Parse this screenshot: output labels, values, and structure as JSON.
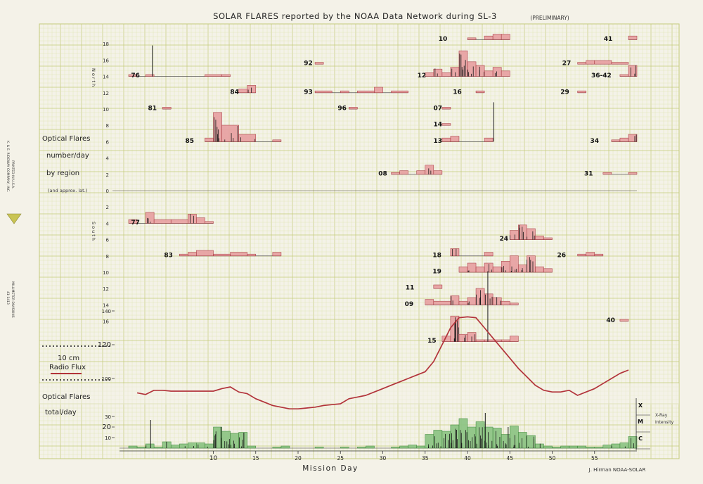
{
  "chart_data": {
    "type": "bar",
    "title": "SOLAR FLARES reported by the NOAA Data Network during SL-3",
    "status": "(PRELIMINARY)",
    "xlabel": "Mission Day",
    "x_ticks": [
      10,
      15,
      20,
      25,
      30,
      35,
      40,
      45,
      50,
      55
    ],
    "x_range": [
      0,
      60
    ],
    "credit": "J. Hirman    NOAA-SOLAR",
    "publisher": {
      "company": "K. & E. RIDGWAY COMPANY, INC.",
      "printed": "PRINTED IN U.S.A.",
      "product": "41-1413",
      "paper": "MILLIMETER DIVISIONS"
    },
    "optical_panel": {
      "label_lines": [
        "Optical Flares",
        "number/day",
        "by region",
        "(and approx. lat.)"
      ],
      "north_label": "North",
      "south_label": "South",
      "lat_ticks_north": [
        "18",
        "16",
        "14",
        "12",
        "10",
        "8",
        "6",
        "4",
        "2"
      ],
      "zero_tick": "0",
      "lat_ticks_south": [
        "2",
        "4",
        "6",
        "8",
        "10",
        "12",
        "14",
        "16"
      ],
      "regions": [
        {
          "id": "76",
          "lat": 14,
          "label_day": 0.8,
          "bars": [
            [
              0,
              1,
              1
            ],
            [
              2,
              3,
              1
            ],
            [
              9,
              11,
              1
            ],
            [
              11,
              12,
              1
            ]
          ]
        },
        {
          "id": "84",
          "lat": 12,
          "label_day": 12.5,
          "bars": [
            [
              13,
              14,
              2
            ],
            [
              14,
              15,
              4
            ]
          ]
        },
        {
          "id": "81",
          "lat": 10,
          "label_day": 2.8,
          "bars": [
            [
              4,
              5,
              1
            ]
          ]
        },
        {
          "id": "85",
          "lat": 6,
          "label_day": 7.2,
          "bars": [
            [
              9,
              10,
              2
            ],
            [
              10,
              11,
              16
            ],
            [
              11,
              13,
              9
            ],
            [
              13,
              15,
              4
            ],
            [
              17,
              18,
              1
            ]
          ]
        },
        {
          "id": "92",
          "lat": 15.5,
          "label_day": 21.2,
          "bars": [
            [
              22,
              23,
              1
            ]
          ]
        },
        {
          "id": "93",
          "lat": 12,
          "label_day": 21.2,
          "bars": [
            [
              22,
              24,
              1
            ],
            [
              25,
              26,
              1
            ],
            [
              27,
              29,
              1
            ],
            [
              29,
              30,
              3
            ],
            [
              31,
              33,
              1
            ]
          ]
        },
        {
          "id": "96",
          "lat": 10,
          "label_day": 25.2,
          "bars": [
            [
              26,
              27,
              1
            ]
          ]
        },
        {
          "id": "08",
          "lat": 2,
          "label_day": 30,
          "bars": [
            [
              31,
              32,
              1
            ],
            [
              32,
              33,
              2
            ],
            [
              34,
              35,
              2
            ],
            [
              35,
              36,
              5
            ],
            [
              36,
              37,
              2
            ]
          ]
        },
        {
          "id": "10",
          "lat": 18.5,
          "label_day": 37.1,
          "bars": [
            [
              40,
              41,
              1
            ],
            [
              42,
              43,
              2
            ],
            [
              43,
              44,
              3
            ],
            [
              44,
              45,
              3
            ]
          ]
        },
        {
          "id": "12",
          "lat": 14,
          "label_day": 34.6,
          "bars": [
            [
              35,
              36,
              2
            ],
            [
              36,
              37,
              4
            ],
            [
              37,
              38,
              2
            ],
            [
              38,
              39,
              5
            ],
            [
              39,
              40,
              14
            ],
            [
              40,
              41,
              8
            ],
            [
              41,
              42,
              6
            ],
            [
              42,
              43,
              3
            ],
            [
              43,
              44,
              5
            ],
            [
              44,
              45,
              3
            ]
          ]
        },
        {
          "id": "16",
          "lat": 12,
          "label_day": 38.8,
          "bars": [
            [
              41,
              42,
              1
            ]
          ]
        },
        {
          "id": "07",
          "lat": 10,
          "label_day": 36.5,
          "bars": [
            [
              37,
              38,
              1
            ]
          ]
        },
        {
          "id": "14",
          "lat": 8,
          "label_day": 36.5,
          "bars": [
            [
              37,
              38,
              1
            ]
          ]
        },
        {
          "id": "13",
          "lat": 6,
          "label_day": 36.5,
          "bars": [
            [
              37,
              38,
              2
            ],
            [
              38,
              39,
              3
            ],
            [
              42,
              43,
              2
            ]
          ]
        },
        {
          "id": "41",
          "lat": 18.5,
          "label_day": 56.6,
          "bars": [
            [
              59,
              60,
              2
            ]
          ]
        },
        {
          "id": "27",
          "lat": 15.5,
          "label_day": 51.7,
          "bars": [
            [
              53,
              54,
              1
            ],
            [
              54,
              55,
              2
            ],
            [
              55,
              57,
              2
            ],
            [
              57,
              59,
              1
            ]
          ]
        },
        {
          "id": "36-42",
          "lat": 14,
          "label_day": 55.8,
          "bars": [
            [
              58,
              59,
              1
            ],
            [
              59,
              60,
              6
            ]
          ]
        },
        {
          "id": "29",
          "lat": 12,
          "label_day": 51.5,
          "bars": [
            [
              53,
              54,
              1
            ]
          ]
        },
        {
          "id": "34",
          "lat": 6,
          "label_day": 55,
          "bars": [
            [
              57,
              58,
              1
            ],
            [
              58,
              59,
              2
            ],
            [
              59,
              60,
              4
            ]
          ]
        },
        {
          "id": "31",
          "lat": 2,
          "label_day": 54.3,
          "bars": [
            [
              56,
              57,
              1
            ],
            [
              59,
              60,
              1
            ]
          ]
        },
        {
          "id": "77",
          "lat": -4,
          "label_day": 0.8,
          "bars": [
            [
              0,
              1,
              2
            ],
            [
              2,
              3,
              6
            ],
            [
              3,
              5,
              2
            ],
            [
              5,
              7,
              2
            ],
            [
              7,
              8,
              5
            ],
            [
              8,
              9,
              3
            ],
            [
              9,
              10,
              1
            ]
          ]
        },
        {
          "id": "83",
          "lat": -8,
          "label_day": 4.7,
          "bars": [
            [
              6,
              7,
              1
            ],
            [
              7,
              8,
              2
            ],
            [
              8,
              10,
              3
            ],
            [
              10,
              12,
              1
            ],
            [
              12,
              14,
              2
            ],
            [
              14,
              15,
              1
            ],
            [
              17,
              18,
              2
            ]
          ]
        },
        {
          "id": "24",
          "lat": -6,
          "label_day": 44.3,
          "bars": [
            [
              45,
              46,
              5
            ],
            [
              46,
              47,
              8
            ],
            [
              47,
              48,
              6
            ],
            [
              48,
              49,
              2
            ],
            [
              49,
              50,
              1
            ]
          ]
        },
        {
          "id": "18",
          "lat": -8,
          "label_day": 36.4,
          "bars": [
            [
              38,
              39,
              4
            ],
            [
              42,
              43,
              2
            ]
          ]
        },
        {
          "id": "26",
          "lat": -8,
          "label_day": 51.1,
          "bars": [
            [
              53,
              54,
              1
            ],
            [
              54,
              55,
              2
            ],
            [
              55,
              56,
              1
            ]
          ]
        },
        {
          "id": "19",
          "lat": -10,
          "label_day": 36.4,
          "bars": [
            [
              39,
              40,
              3
            ],
            [
              40,
              41,
              5
            ],
            [
              41,
              42,
              3
            ],
            [
              42,
              43,
              5
            ],
            [
              43,
              44,
              3
            ],
            [
              44,
              45,
              6
            ],
            [
              45,
              46,
              9
            ],
            [
              46,
              47,
              4
            ],
            [
              47,
              48,
              9
            ],
            [
              48,
              49,
              3
            ],
            [
              49,
              50,
              2
            ]
          ]
        },
        {
          "id": "11",
          "lat": -12,
          "label_day": 33.2,
          "bars": [
            [
              36,
              37,
              2
            ]
          ]
        },
        {
          "id": "09",
          "lat": -14,
          "label_day": 33.1,
          "bars": [
            [
              35,
              36,
              3
            ],
            [
              36,
              38,
              2
            ],
            [
              38,
              39,
              5
            ],
            [
              39,
              40,
              2
            ],
            [
              40,
              41,
              4
            ],
            [
              41,
              42,
              9
            ],
            [
              42,
              43,
              6
            ],
            [
              43,
              44,
              4
            ],
            [
              44,
              45,
              2
            ],
            [
              45,
              46,
              1
            ]
          ]
        },
        {
          "id": "40",
          "lat": -16,
          "label_day": 56.9,
          "bars": [
            [
              58,
              59,
              1
            ]
          ]
        },
        {
          "id": "15",
          "lat": -18.5,
          "label_day": 35.8,
          "bars": [
            [
              37,
              38,
              3
            ],
            [
              38,
              39,
              14
            ],
            [
              39,
              40,
              4
            ],
            [
              40,
              41,
              5
            ],
            [
              41,
              42,
              1
            ],
            [
              42,
              44,
              1
            ],
            [
              44,
              45,
              1
            ],
            [
              45,
              46,
              3
            ]
          ]
        }
      ]
    },
    "radio_panel": {
      "label_lines": [
        "10 cm",
        "Radio Flux"
      ],
      "y_ticks": [
        100,
        120,
        140
      ],
      "y_range": [
        60,
        140
      ],
      "x": [
        1,
        2,
        3,
        4,
        5,
        6,
        7,
        8,
        9,
        10,
        11,
        12,
        13,
        14,
        15,
        16,
        17,
        18,
        19,
        20,
        21,
        22,
        23,
        24,
        25,
        26,
        27,
        28,
        29,
        30,
        31,
        32,
        33,
        34,
        35,
        36,
        37,
        38,
        39,
        40,
        41,
        42,
        43,
        44,
        45,
        46,
        47,
        48,
        49,
        50,
        51,
        52,
        53,
        54,
        55,
        56,
        57,
        58,
        59
      ],
      "values": [
        91.5,
        90.5,
        93,
        93,
        92.5,
        92.5,
        92.5,
        92.5,
        92.5,
        92.5,
        94,
        95,
        92,
        91,
        88,
        86,
        84,
        83,
        82,
        82,
        82.5,
        83,
        84,
        84.5,
        85,
        88,
        89,
        90,
        92,
        94,
        96,
        98,
        100,
        102,
        104,
        110,
        120,
        130,
        136,
        136.5,
        136,
        130,
        124,
        118,
        112,
        106,
        101,
        96,
        93,
        92,
        92,
        93,
        90,
        92,
        94,
        97,
        100,
        103,
        105
      ]
    },
    "total_panel": {
      "label_lines": [
        "Optical Flares",
        "total/day"
      ],
      "y_ticks": [
        10,
        20,
        30
      ],
      "y_range": [
        0,
        30
      ],
      "categories": [
        0,
        1,
        2,
        3,
        4,
        5,
        6,
        7,
        8,
        9,
        10,
        11,
        12,
        13,
        14,
        15,
        16,
        17,
        18,
        19,
        20,
        21,
        22,
        23,
        24,
        25,
        26,
        27,
        28,
        29,
        30,
        31,
        32,
        33,
        34,
        35,
        36,
        37,
        38,
        39,
        40,
        41,
        42,
        43,
        44,
        45,
        46,
        47,
        48,
        49,
        50,
        51,
        52,
        53,
        54,
        55,
        56,
        57,
        58,
        59
      ],
      "values": [
        2,
        1,
        4,
        1,
        6,
        3,
        4,
        5,
        5,
        4,
        20,
        16,
        14,
        15,
        2,
        0,
        0,
        1,
        2,
        0,
        0,
        0,
        1,
        0,
        0,
        1,
        0,
        1,
        2,
        0,
        0,
        1,
        2,
        3,
        2,
        13,
        17,
        16,
        22,
        28,
        20,
        25,
        20,
        19,
        13,
        21,
        15,
        12,
        4,
        2,
        1,
        2,
        2,
        2,
        1,
        1,
        3,
        4,
        5,
        11
      ]
    },
    "xray_legend": {
      "classes": [
        "X",
        "M",
        "C"
      ],
      "label_lines": [
        "X-Ray",
        "Intensity"
      ]
    },
    "colors": {
      "grid_minor": "#dfe5b4",
      "grid_major": "#c3cb7a",
      "optical_fill": "#e7a1a2",
      "optical_edge": "#a83a40",
      "total_fill": "#8cc484",
      "total_edge": "#3f8a3a",
      "radio_line": "#b2333a",
      "spike": "#1a1a1a"
    }
  }
}
